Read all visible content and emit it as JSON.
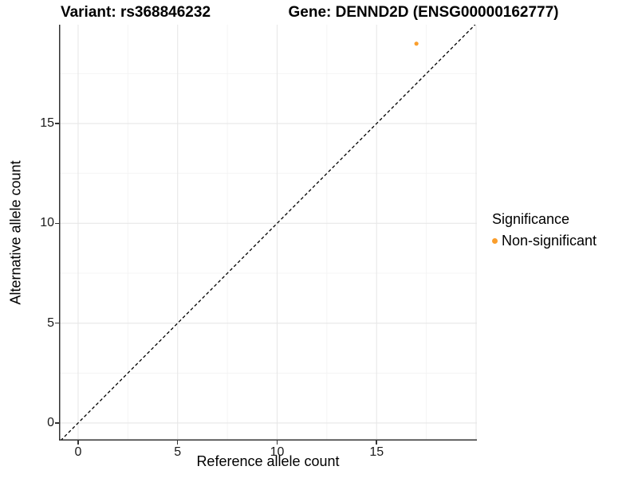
{
  "chart_data": {
    "type": "scatter",
    "titles": {
      "left": "Variant: rs368846232",
      "right": "Gene: DENND2D (ENSG00000162777)"
    },
    "xlabel": "Reference allele count",
    "ylabel": "Alternative allele count",
    "xlim": [
      -0.96,
      20.04
    ],
    "ylim": [
      -0.88,
      19.95
    ],
    "x_ticks": [
      0,
      5,
      10,
      15
    ],
    "y_ticks": [
      0,
      5,
      10,
      15
    ],
    "grid_major": [
      0,
      5,
      10,
      15,
      20
    ],
    "grid_minor": [
      2.5,
      7.5,
      12.5,
      17.5
    ],
    "grid": "on",
    "points": [
      {
        "x": 17,
        "y": 19,
        "series": "Non-significant"
      }
    ],
    "identity_line": {
      "label": "y = x",
      "style": "dashed",
      "color": "#000000"
    },
    "legend": {
      "position": "right",
      "title": "Significance",
      "entries": [
        {
          "label": "Non-significant",
          "color": "#FA9E2C"
        }
      ]
    },
    "colors": {
      "point": "#FA9E2C",
      "grid_major": "#e7e7e7",
      "grid_minor": "#f2f2f2",
      "axis_line": "#333333",
      "tick": "#333333",
      "text": "#1a1a1a"
    }
  }
}
